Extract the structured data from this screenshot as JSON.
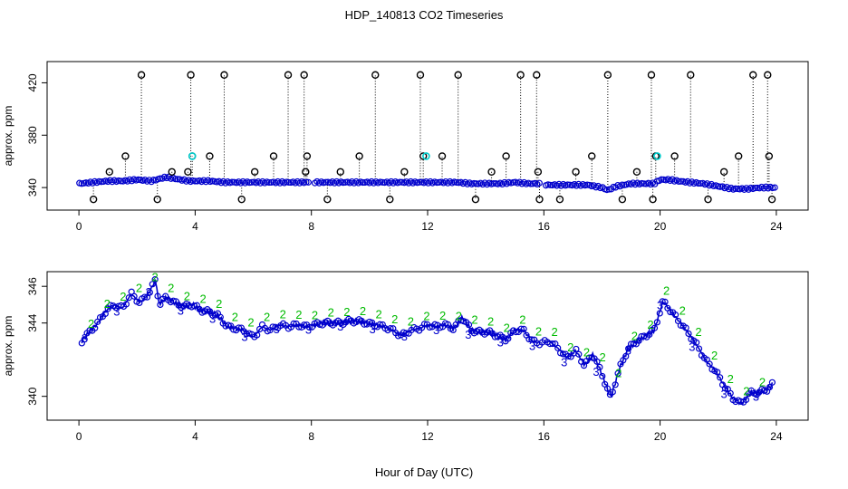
{
  "title": "HDP_140813  CO2 Timeseries",
  "xlabel": "Hour of Day (UTC)",
  "colors": {
    "series1": "#0000cc",
    "series2": "#00bb00",
    "series3": "#0000cc",
    "spike": "#000000",
    "cal": "#00cccc"
  },
  "chart_data": [
    {
      "type": "scatter",
      "panel": "top",
      "ylabel": "approx. ppm",
      "xlim": [
        0,
        24
      ],
      "ylim": [
        327,
        432
      ],
      "xticks": [
        0,
        4,
        8,
        12,
        16,
        20,
        24
      ],
      "yticks": [
        340,
        380,
        420
      ],
      "ytick_labels": [
        "340",
        "380",
        "420"
      ],
      "xtick_labels": [
        "0",
        "4",
        "8",
        "12",
        "16",
        "20",
        "24"
      ],
      "baseline": {
        "x": [
          0,
          0.5,
          1,
          1.5,
          2,
          2.5,
          3,
          3.5,
          3.8,
          4.1,
          4.5,
          5,
          5.5,
          6,
          6.5,
          7,
          7.5,
          8,
          8.5,
          9,
          9.5,
          10,
          10.5,
          11,
          11.5,
          12,
          12.5,
          13,
          13.5,
          14,
          14.5,
          15,
          15.5,
          15.8,
          16.1,
          16.5,
          17,
          17.5,
          18,
          18.2,
          18.5,
          19,
          19.5,
          19.8,
          20,
          20.3,
          20.6,
          21,
          21.5,
          22,
          22.5,
          23,
          23.5,
          23.9
        ],
        "values": [
          343,
          344,
          345,
          345,
          346,
          345,
          348,
          346,
          345,
          345,
          345,
          344,
          344,
          344,
          344,
          344,
          344,
          344,
          344,
          344,
          344,
          344,
          344,
          344,
          344,
          344,
          344,
          344,
          343,
          343,
          343,
          344,
          343,
          343,
          342,
          342,
          342,
          342,
          340,
          338,
          341,
          343,
          343,
          343,
          346,
          346,
          345,
          344,
          343,
          341,
          339,
          339,
          340,
          340
        ]
      },
      "spikes": {
        "x": [
          0.5,
          1.05,
          1.6,
          2.15,
          2.7,
          3.2,
          3.75,
          3.85,
          3.9,
          4.5,
          5.0,
          5.6,
          6.05,
          6.7,
          7.2,
          7.75,
          7.8,
          7.85,
          8.55,
          9.0,
          9.65,
          10.2,
          10.7,
          11.2,
          11.75,
          11.85,
          12.5,
          13.05,
          13.65,
          14.2,
          14.7,
          15.2,
          15.75,
          15.8,
          15.85,
          16.55,
          17.1,
          17.65,
          18.2,
          18.7,
          19.2,
          19.7,
          19.75,
          19.85,
          20.5,
          21.05,
          21.65,
          22.2,
          22.7,
          23.2,
          23.7,
          23.75,
          23.85
        ],
        "values": [
          331,
          352,
          364,
          426,
          331,
          352,
          352,
          426,
          364,
          364,
          426,
          331,
          352,
          364,
          426,
          426,
          352,
          364,
          331,
          352,
          364,
          426,
          331,
          352,
          426,
          364,
          364,
          426,
          331,
          352,
          364,
          426,
          426,
          352,
          331,
          331,
          352,
          364,
          426,
          331,
          352,
          426,
          331,
          364,
          364,
          426,
          331,
          352,
          364,
          426,
          426,
          364,
          331
        ]
      },
      "cal_points": {
        "x": [
          3.9,
          11.95,
          19.9
        ],
        "values": [
          364,
          364,
          364
        ]
      }
    },
    {
      "type": "line",
      "panel": "bottom",
      "ylabel": "approx. ppm",
      "xlim": [
        0,
        24
      ],
      "ylim": [
        339,
        346.5
      ],
      "xticks": [
        0,
        4,
        8,
        12,
        16,
        20,
        24
      ],
      "yticks": [
        340,
        344,
        346
      ],
      "ytick_labels": [
        "340",
        "344",
        "346"
      ],
      "xtick_labels": [
        "0",
        "4",
        "8",
        "12",
        "16",
        "20",
        "24"
      ],
      "series": [
        {
          "marker": "o",
          "x": [
            0.1,
            0.3,
            0.6,
            0.9,
            1.2,
            1.5,
            1.8,
            2.1,
            2.4,
            2.65,
            2.75,
            3.0,
            3.3,
            3.6,
            3.9,
            4.2,
            4.5,
            4.8,
            5.1,
            5.4,
            5.7,
            6.0,
            6.3,
            6.6,
            6.9,
            7.2,
            7.5,
            7.8,
            8.1,
            8.4,
            8.7,
            9.0,
            9.3,
            9.6,
            9.9,
            10.2,
            10.5,
            10.8,
            11.1,
            11.4,
            11.7,
            12.0,
            12.3,
            12.6,
            12.9,
            13.2,
            13.5,
            13.8,
            14.1,
            14.4,
            14.7,
            15.0,
            15.3,
            15.6,
            15.9,
            16.2,
            16.5,
            16.8,
            17.1,
            17.4,
            17.7,
            18.0,
            18.3,
            18.6,
            18.9,
            19.2,
            19.5,
            19.8,
            20.1,
            20.4,
            20.7,
            21.0,
            21.3,
            21.6,
            21.9,
            22.2,
            22.5,
            22.8,
            23.1,
            23.4,
            23.7,
            23.9
          ],
          "values": [
            343.0,
            343.4,
            343.9,
            344.6,
            345.0,
            344.8,
            345.6,
            345.1,
            345.6,
            346.4,
            345.0,
            345.4,
            345.1,
            344.9,
            345.0,
            344.7,
            344.6,
            344.4,
            343.8,
            343.7,
            343.6,
            343.2,
            343.8,
            343.6,
            343.9,
            343.8,
            343.9,
            343.8,
            343.9,
            344.0,
            344.0,
            344.0,
            344.1,
            344.1,
            344.0,
            343.9,
            343.8,
            343.6,
            343.3,
            343.6,
            343.7,
            343.9,
            343.8,
            343.9,
            343.7,
            344.3,
            343.6,
            343.5,
            343.5,
            343.3,
            343.1,
            343.6,
            343.6,
            343.0,
            342.9,
            343.0,
            342.6,
            342.1,
            342.5,
            341.7,
            342.3,
            341.2,
            339.9,
            341.5,
            342.6,
            343.0,
            343.3,
            343.6,
            345.2,
            344.6,
            344.0,
            343.4,
            342.7,
            341.9,
            341.4,
            340.6,
            339.9,
            339.6,
            340.2,
            340.2,
            340.4,
            340.7
          ]
        }
      ]
    }
  ]
}
